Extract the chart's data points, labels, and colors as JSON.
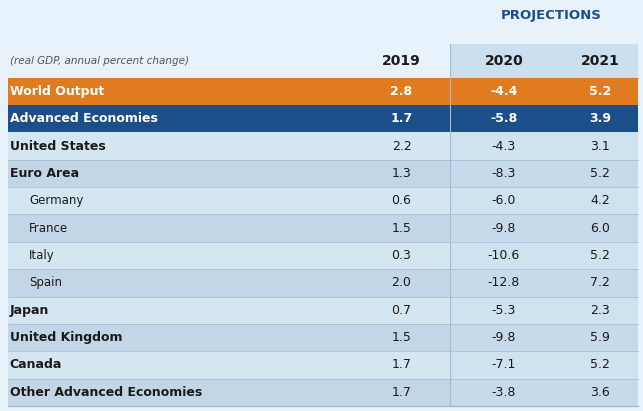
{
  "projections_label": "PROJECTIONS",
  "subtitle": "(real GDP, annual percent change)",
  "col_headers": [
    "2019",
    "2020",
    "2021"
  ],
  "rows": [
    {
      "label": "World Output",
      "indent": 0,
      "bold": true,
      "style": "orange",
      "vals": [
        "2.8",
        "-4.4",
        "5.2"
      ]
    },
    {
      "label": "Advanced Economies",
      "indent": 0,
      "bold": true,
      "style": "blue",
      "vals": [
        "1.7",
        "-5.8",
        "3.9"
      ]
    },
    {
      "label": "United States",
      "indent": 0,
      "bold": true,
      "style": "light1",
      "vals": [
        "2.2",
        "-4.3",
        "3.1"
      ]
    },
    {
      "label": "Euro Area",
      "indent": 0,
      "bold": true,
      "style": "light2",
      "vals": [
        "1.3",
        "-8.3",
        "5.2"
      ]
    },
    {
      "label": "Germany",
      "indent": 1,
      "bold": false,
      "style": "light1",
      "vals": [
        "0.6",
        "-6.0",
        "4.2"
      ]
    },
    {
      "label": "France",
      "indent": 1,
      "bold": false,
      "style": "light2",
      "vals": [
        "1.5",
        "-9.8",
        "6.0"
      ]
    },
    {
      "label": "Italy",
      "indent": 1,
      "bold": false,
      "style": "light1",
      "vals": [
        "0.3",
        "-10.6",
        "5.2"
      ]
    },
    {
      "label": "Spain",
      "indent": 1,
      "bold": false,
      "style": "light2",
      "vals": [
        "2.0",
        "-12.8",
        "7.2"
      ]
    },
    {
      "label": "Japan",
      "indent": 0,
      "bold": true,
      "style": "light1",
      "vals": [
        "0.7",
        "-5.3",
        "2.3"
      ]
    },
    {
      "label": "United Kingdom",
      "indent": 0,
      "bold": true,
      "style": "light2",
      "vals": [
        "1.5",
        "-9.8",
        "5.9"
      ]
    },
    {
      "label": "Canada",
      "indent": 0,
      "bold": true,
      "style": "light1",
      "vals": [
        "1.7",
        "-7.1",
        "5.2"
      ]
    },
    {
      "label": "Other Advanced Economies",
      "indent": 0,
      "bold": true,
      "style": "light2",
      "vals": [
        "1.7",
        "-3.8",
        "3.6"
      ]
    }
  ],
  "colors": {
    "orange": "#E07B1F",
    "blue": "#1B4F8A",
    "light1": "#D4E6F1",
    "light2": "#C2D6E8",
    "projections_color": "#1B4F8A",
    "white": "#FFFFFF",
    "dark_text": "#1a1a1a",
    "subtle_text": "#555555",
    "projection_col_bg": "#CADFF0",
    "line_color": "#a0bcd0"
  },
  "background_color": "#E8F2FA",
  "fig_width": 6.43,
  "fig_height": 4.11
}
